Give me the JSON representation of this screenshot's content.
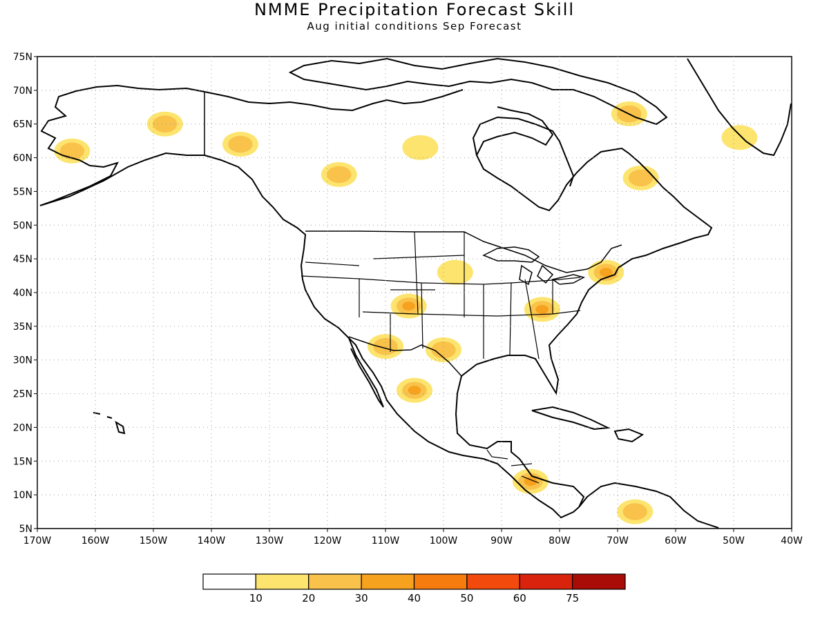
{
  "title": "NMME Precipitation Forecast Skill",
  "subtitle": "Aug initial conditions  Sep Forecast",
  "map": {
    "lon_range": [
      -170,
      -40
    ],
    "lat_range": [
      5,
      75
    ],
    "lat_labels": [
      "75N",
      "70N",
      "65N",
      "60N",
      "55N",
      "50N",
      "45N",
      "40N",
      "35N",
      "30N",
      "25N",
      "20N",
      "15N",
      "10N",
      "5N"
    ],
    "lon_labels": [
      "170W",
      "160W",
      "150W",
      "140W",
      "130W",
      "120W",
      "110W",
      "100W",
      "90W",
      "80W",
      "70W",
      "60W",
      "50W",
      "40W"
    ],
    "grid": "dotted"
  },
  "colorbar": {
    "colors": [
      "#ffffff",
      "#fde46e",
      "#f9c24a",
      "#f7a21e",
      "#f57c0d",
      "#f24a0c",
      "#d9230d",
      "#a90b07"
    ],
    "labels": [
      "10",
      "20",
      "30",
      "40",
      "50",
      "60",
      "75"
    ]
  },
  "skill_regions": [
    {
      "name": "alaska-west",
      "lon": -164,
      "lat": 61.0,
      "level": 2
    },
    {
      "name": "alaska-central",
      "lon": -148,
      "lat": 65.0,
      "level": 2
    },
    {
      "name": "yukon",
      "lon": -135,
      "lat": 62.0,
      "level": 2
    },
    {
      "name": "northern-bc",
      "lon": -118,
      "lat": 57.5,
      "level": 2
    },
    {
      "name": "hudson-region",
      "lon": -104,
      "lat": 61.5,
      "level": 1
    },
    {
      "name": "ungava",
      "lon": -66,
      "lat": 57.0,
      "level": 2
    },
    {
      "name": "baffin",
      "lon": -68,
      "lat": 66.5,
      "level": 2
    },
    {
      "name": "greenland-sw",
      "lon": -49,
      "lat": 63.0,
      "level": 1
    },
    {
      "name": "four-corners",
      "lon": -106,
      "lat": 38.0,
      "level": 3
    },
    {
      "name": "arizona-sonora",
      "lon": -110,
      "lat": 32.0,
      "level": 2
    },
    {
      "name": "sierra-madre",
      "lon": -105,
      "lat": 25.5,
      "level": 3
    },
    {
      "name": "texas",
      "lon": -100,
      "lat": 31.5,
      "level": 2
    },
    {
      "name": "great-plains",
      "lon": -98,
      "lat": 43.0,
      "level": 1
    },
    {
      "name": "appalachians",
      "lon": -83,
      "lat": 37.5,
      "level": 3
    },
    {
      "name": "new-england",
      "lon": -72,
      "lat": 43.0,
      "level": 3
    },
    {
      "name": "central-america",
      "lon": -85,
      "lat": 12.0,
      "level": 3
    },
    {
      "name": "venezuela",
      "lon": -67,
      "lat": 7.5,
      "level": 2
    }
  ]
}
